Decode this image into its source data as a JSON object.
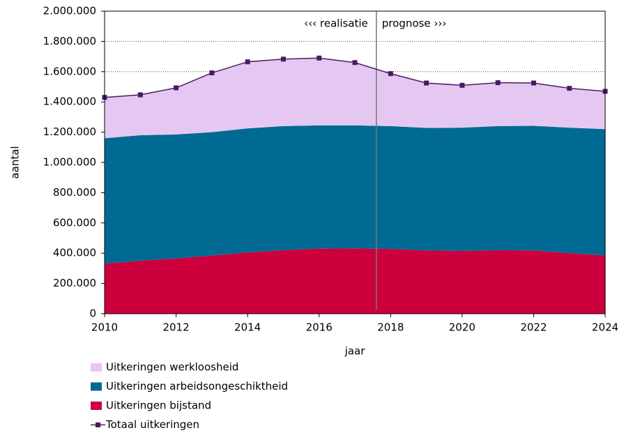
{
  "chart_data": {
    "type": "stacked-area-line",
    "x": [
      2010,
      2011,
      2012,
      2013,
      2014,
      2015,
      2016,
      2017,
      2018,
      2019,
      2020,
      2021,
      2022,
      2023,
      2024
    ],
    "series": [
      {
        "name": "Uitkeringen werkloosheid",
        "color": "#e5c8f1",
        "kind": "area",
        "values": [
          270000,
          267000,
          308000,
          392000,
          440000,
          443000,
          445000,
          415000,
          347000,
          297000,
          280000,
          287000,
          283000,
          260000,
          250000
        ]
      },
      {
        "name": "Uitkeringen arbeidsongeschiktheid",
        "color": "#006a94",
        "kind": "area",
        "values": [
          830000,
          830000,
          820000,
          815000,
          820000,
          820000,
          815000,
          813000,
          812000,
          810000,
          815000,
          820000,
          824000,
          830000,
          835000
        ]
      },
      {
        "name": "Uitkeringen bijstand",
        "color": "#cc003d",
        "kind": "area",
        "values": [
          330000,
          350000,
          365000,
          385000,
          405000,
          420000,
          430000,
          432000,
          428000,
          418000,
          415000,
          420000,
          418000,
          400000,
          385000
        ]
      },
      {
        "name": "Totaal uitkeringen",
        "color": "#4b1a63",
        "kind": "line",
        "values": [
          1430000,
          1447000,
          1493000,
          1592000,
          1665000,
          1683000,
          1690000,
          1660000,
          1587000,
          1525000,
          1510000,
          1527000,
          1525000,
          1490000,
          1470000
        ]
      }
    ],
    "xlabel": "jaar",
    "ylabel": "aantal",
    "xlim": [
      2010,
      2024
    ],
    "xticks": [
      2010,
      2012,
      2014,
      2016,
      2018,
      2020,
      2022,
      2024
    ],
    "ylim": [
      0,
      2000000
    ],
    "yticks": [
      0,
      {
        "value": 200000,
        "label": "200.000"
      },
      {
        "value": 400000,
        "label": "400.000"
      },
      {
        "value": 600000,
        "label": "600.000"
      },
      {
        "value": 800000,
        "label": "800.000"
      },
      {
        "value": 1000000,
        "label": "1.000.000"
      },
      {
        "value": 1200000,
        "label": "1.200.000"
      },
      {
        "value": 1400000,
        "label": "1.400.000"
      },
      {
        "value": 1600000,
        "label": "1.600.000"
      },
      {
        "value": 1800000,
        "label": "1.800.000"
      },
      {
        "value": 2000000,
        "label": "2.000.000"
      }
    ],
    "grid": true,
    "divider_x": 2017.6,
    "annotations": [
      "‹‹‹ realisatie",
      "prognose ›››"
    ]
  }
}
